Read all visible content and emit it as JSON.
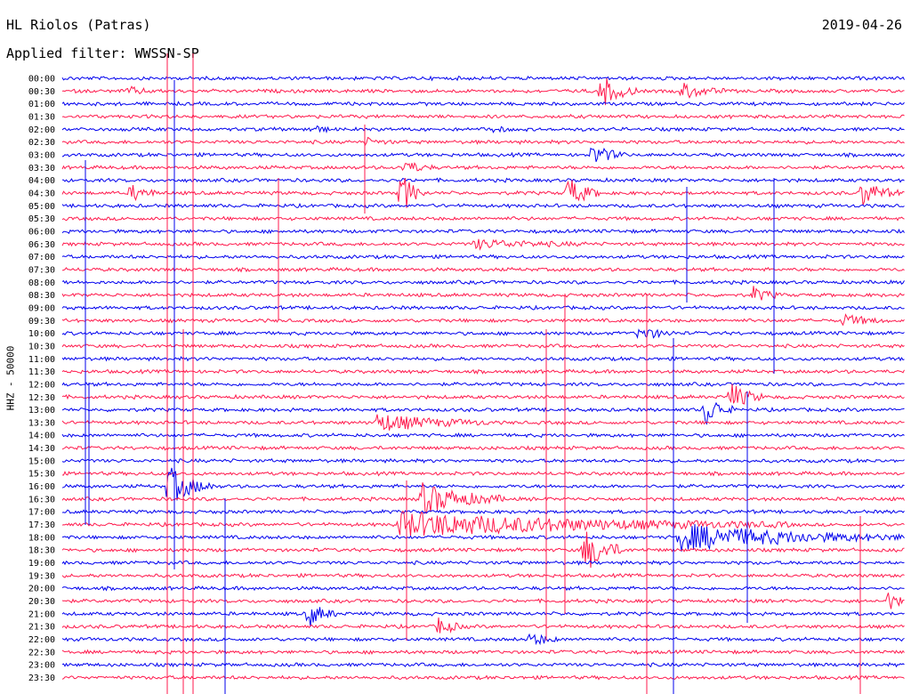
{
  "header": {
    "station": "HL Riolos (Patras)",
    "date": "2019-04-26",
    "filter": "Applied filter: WWSSN-SP"
  },
  "channel_label": "HHZ - 50000",
  "colors": {
    "odd": "#0000ee",
    "even": "#ff1a4d",
    "background": "#ffffff",
    "text": "#000000"
  },
  "chart_data": {
    "type": "line",
    "title": "HL Riolos (Patras)",
    "subtitle": "Applied filter: WWSSN-SP",
    "ylabel": "HHZ - 50000",
    "xlabel": "",
    "rows": [
      "00:00",
      "00:30",
      "01:00",
      "01:30",
      "02:00",
      "02:30",
      "03:00",
      "03:30",
      "04:00",
      "04:30",
      "05:00",
      "05:30",
      "06:00",
      "06:30",
      "07:00",
      "07:30",
      "08:00",
      "08:30",
      "09:00",
      "09:30",
      "10:00",
      "10:30",
      "11:00",
      "11:30",
      "12:00",
      "12:30",
      "13:00",
      "13:30",
      "14:00",
      "14:30",
      "15:00",
      "15:30",
      "16:00",
      "16:30",
      "17:00",
      "17:30",
      "18:00",
      "18:30",
      "19:00",
      "19:30",
      "20:00",
      "20:30",
      "21:00",
      "21:30",
      "22:00",
      "22:30",
      "23:00",
      "23:30"
    ],
    "row_minutes": 30,
    "events": [
      {
        "row": "00:30",
        "minute": 19.2,
        "amplitude": 1.8,
        "duration": 1.3
      },
      {
        "row": "00:30",
        "minute": 2.4,
        "amplitude": 0.4,
        "duration": 1.0
      },
      {
        "row": "00:30",
        "minute": 22.1,
        "amplitude": 0.9,
        "duration": 1.5
      },
      {
        "row": "02:00",
        "minute": 8.8,
        "amplitude": 0.4,
        "duration": 1.0
      },
      {
        "row": "02:00",
        "minute": 15.3,
        "amplitude": 0.3,
        "duration": 0.8
      },
      {
        "row": "02:30",
        "minute": 10.8,
        "amplitude": 0.4,
        "duration": 1.0
      },
      {
        "row": "03:00",
        "minute": 18.9,
        "amplitude": 1.2,
        "duration": 1.2
      },
      {
        "row": "03:30",
        "minute": 12.2,
        "amplitude": 0.8,
        "duration": 1.0
      },
      {
        "row": "04:30",
        "minute": 2.5,
        "amplitude": 0.9,
        "duration": 1.0
      },
      {
        "row": "04:30",
        "minute": 12.1,
        "amplitude": 2.4,
        "duration": 0.8
      },
      {
        "row": "04:30",
        "minute": 18.0,
        "amplitude": 1.8,
        "duration": 1.2
      },
      {
        "row": "04:30",
        "minute": 28.5,
        "amplitude": 1.5,
        "duration": 1.3
      },
      {
        "row": "06:30",
        "minute": 14.7,
        "amplitude": 0.5,
        "duration": 4.0
      },
      {
        "row": "08:30",
        "minute": 24.6,
        "amplitude": 0.9,
        "duration": 1.0
      },
      {
        "row": "09:30",
        "minute": 27.8,
        "amplitude": 0.7,
        "duration": 1.5
      },
      {
        "row": "10:00",
        "minute": 20.6,
        "amplitude": 0.8,
        "duration": 1.2
      },
      {
        "row": "12:30",
        "minute": 23.8,
        "amplitude": 1.6,
        "duration": 1.2
      },
      {
        "row": "13:00",
        "minute": 22.9,
        "amplitude": 1.9,
        "duration": 1.0
      },
      {
        "row": "13:30",
        "minute": 11.2,
        "amplitude": 1.0,
        "duration": 4.0
      },
      {
        "row": "16:00",
        "minute": 3.8,
        "amplitude": 2.2,
        "duration": 1.6
      },
      {
        "row": "16:30",
        "minute": 12.8,
        "amplitude": 1.8,
        "duration": 3.0
      },
      {
        "row": "17:30",
        "minute": 12.0,
        "amplitude": 1.4,
        "duration": 14.0
      },
      {
        "row": "18:00",
        "minute": 22.0,
        "amplitude": 1.5,
        "duration": 8.0
      },
      {
        "row": "18:30",
        "minute": 18.6,
        "amplitude": 2.5,
        "duration": 1.5
      },
      {
        "row": "21:00",
        "minute": 8.8,
        "amplitude": 1.4,
        "duration": 1.0
      },
      {
        "row": "21:30",
        "minute": 13.4,
        "amplitude": 1.0,
        "duration": 1.0
      },
      {
        "row": "22:00",
        "minute": 16.7,
        "amplitude": 0.8,
        "duration": 1.0
      },
      {
        "row": "20:30",
        "minute": 29.4,
        "amplitude": 1.0,
        "duration": 0.8
      }
    ]
  }
}
